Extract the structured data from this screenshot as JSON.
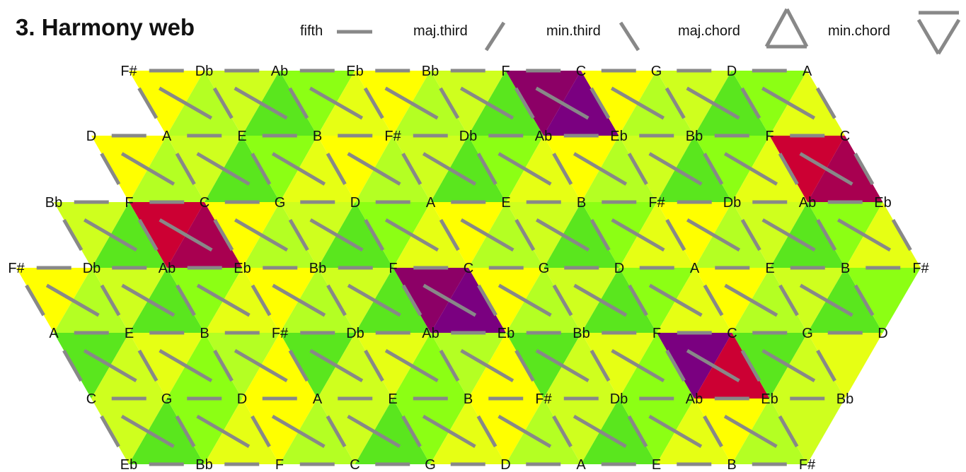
{
  "title": "3. Harmony web",
  "legend": {
    "fifth": "fifth",
    "maj_third": "maj.third",
    "min_third": "min.third",
    "maj_chord": "maj.chord",
    "min_chord": "min.chord"
  },
  "colors": {
    "edge": "#888888",
    "tonal": [
      "#ffff00",
      "#e6ff14",
      "#cfff1e",
      "#b4ff23",
      "#8cff14",
      "#5ae61e"
    ],
    "outer": [
      "#cc0033",
      "#a80050",
      "#8c0066",
      "#7a0080"
    ]
  },
  "rows": [
    [
      "F#",
      "Db",
      "Ab",
      "Eb",
      "Bb",
      "F",
      "C",
      "G",
      "D",
      "A"
    ],
    [
      "D",
      "A",
      "E",
      "B",
      "F#",
      "Db",
      "Ab",
      "Eb",
      "Bb",
      "F",
      "C"
    ],
    [
      "Bb",
      "F",
      "C",
      "G",
      "D",
      "A",
      "E",
      "B",
      "F#",
      "Db",
      "Ab",
      "Eb"
    ],
    [
      "F#",
      "Db",
      "Ab",
      "Eb",
      "Bb",
      "F",
      "C",
      "G",
      "D",
      "A",
      "E",
      "B",
      "F#"
    ],
    [
      "A",
      "E",
      "B",
      "F#",
      "Db",
      "Ab",
      "Eb",
      "Bb",
      "F",
      "C",
      "G",
      "D"
    ],
    [
      "C",
      "G",
      "D",
      "A",
      "E",
      "B",
      "F#",
      "Db",
      "Ab",
      "Eb",
      "Bb"
    ],
    [
      "Eb",
      "Bb",
      "F",
      "C",
      "G",
      "D",
      "A",
      "E",
      "B",
      "F#"
    ]
  ]
}
